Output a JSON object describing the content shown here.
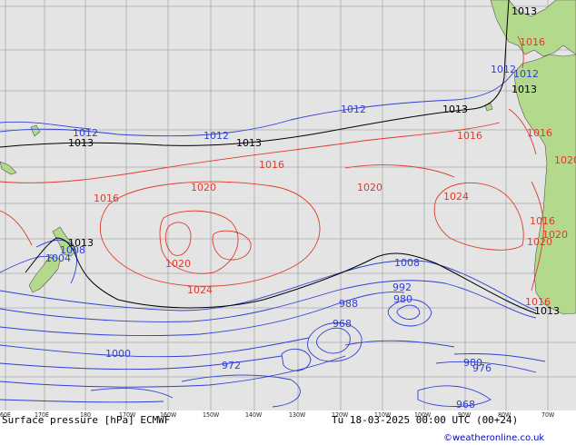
{
  "map": {
    "footer_left": "Surface pressure [hPa] ECMWF",
    "footer_right": "Tu 18-03-2025 00:00 UTC (00+24)",
    "credit": "©weatheronline.co.uk",
    "colors": {
      "background": "#e4e4e4",
      "land": "#b3d98c",
      "grid": "#a8a8a8",
      "high_isobar": "#e03a2a",
      "low_isobar": "#2e3fd6",
      "standard_isobar": "#000000",
      "credit": "#0000cc"
    },
    "lon_ticks": [
      "160E",
      "170E",
      "180",
      "170W",
      "160W",
      "150W",
      "140W",
      "130W",
      "120W",
      "110W",
      "100W",
      "90W",
      "80W",
      "70W"
    ],
    "isobar_labels": {
      "black": [
        "1013",
        "1013",
        "1013",
        "1013",
        "1013",
        "1013",
        "1013"
      ],
      "red": [
        "1016",
        "1016",
        "1016",
        "1020",
        "1020",
        "1020",
        "1024",
        "1024",
        "1016",
        "1016",
        "1020",
        "1016",
        "1020",
        "1020",
        "1016"
      ],
      "blue": [
        "1012",
        "1012",
        "1012",
        "1008",
        "1004",
        "1008",
        "992",
        "988",
        "980",
        "968",
        "1000",
        "972",
        "980",
        "976",
        "968",
        "1012",
        "1012"
      ]
    }
  }
}
